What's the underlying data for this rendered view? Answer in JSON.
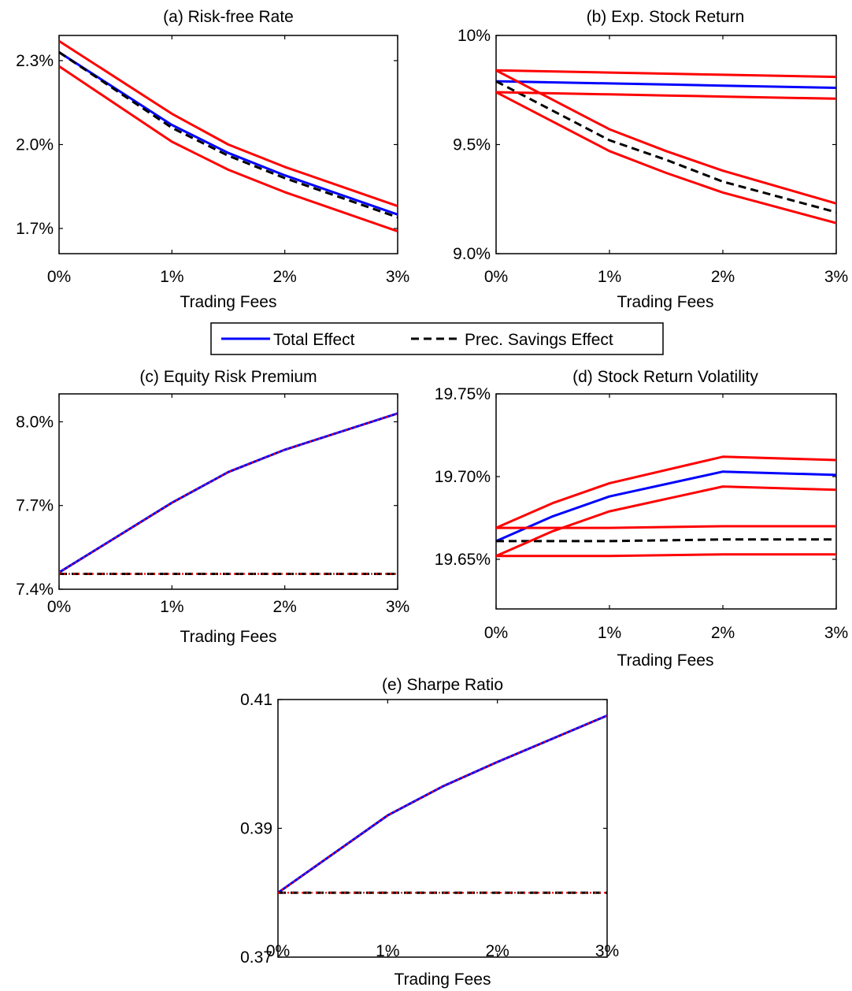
{
  "chart_data": [
    {
      "type": "line",
      "title": "(a) Risk-free Rate",
      "xlabel": "Trading Fees",
      "ylabel": "",
      "x": [
        0,
        1,
        1.5,
        2,
        3
      ],
      "x_tick_labels": [
        "0%",
        "1%",
        "2%",
        "3%"
      ],
      "y_tick_labels": [
        "1.7%",
        "2.0%",
        "2.3%"
      ],
      "ylim": [
        1.61,
        2.39
      ],
      "series": [
        {
          "name": "Total Effect",
          "color": "#0000ff",
          "dash": "solid",
          "values": [
            2.33,
            2.07,
            1.97,
            1.89,
            1.75
          ]
        },
        {
          "name": "Prec. Savings Effect",
          "color": "#000000",
          "dash": "dashed",
          "values": [
            2.33,
            2.06,
            1.96,
            1.88,
            1.74
          ]
        },
        {
          "name": "",
          "color": "#ff0000",
          "dash": "solid",
          "values": [
            2.37,
            2.11,
            2.0,
            1.92,
            1.78
          ]
        },
        {
          "name": "",
          "color": "#ff0000",
          "dash": "solid",
          "values": [
            2.28,
            2.01,
            1.91,
            1.83,
            1.69
          ]
        }
      ]
    },
    {
      "type": "line",
      "title": "(b) Exp. Stock Return",
      "xlabel": "Trading Fees",
      "ylabel": "",
      "x": [
        0,
        1,
        1.5,
        2,
        3
      ],
      "x_tick_labels": [
        "0%",
        "1%",
        "2%",
        "3%"
      ],
      "y_tick_labels": [
        "9.0%",
        "9.5%",
        "10%"
      ],
      "ylim": [
        9.0,
        10.0
      ],
      "series": [
        {
          "name": "Total Effect",
          "color": "#0000ff",
          "dash": "solid",
          "values": [
            9.79,
            9.78,
            9.775,
            9.77,
            9.76
          ]
        },
        {
          "name": "Prec. Savings Effect",
          "color": "#000000",
          "dash": "dashed",
          "values": [
            9.79,
            9.52,
            9.43,
            9.33,
            9.19
          ]
        },
        {
          "name": "",
          "color": "#ff0000",
          "dash": "solid",
          "values": [
            9.84,
            9.83,
            9.825,
            9.82,
            9.81
          ]
        },
        {
          "name": "",
          "color": "#ff0000",
          "dash": "solid",
          "values": [
            9.74,
            9.73,
            9.725,
            9.72,
            9.71
          ]
        },
        {
          "name": "",
          "color": "#ff0000",
          "dash": "solid",
          "values": [
            9.84,
            9.57,
            9.47,
            9.38,
            9.23
          ]
        },
        {
          "name": "",
          "color": "#ff0000",
          "dash": "solid",
          "values": [
            9.74,
            9.47,
            9.37,
            9.28,
            9.14
          ]
        }
      ]
    },
    {
      "type": "line",
      "title": "(c) Equity Risk Premium",
      "xlabel": "Trading Fees",
      "ylabel": "",
      "x": [
        0,
        1,
        1.5,
        2,
        3
      ],
      "x_tick_labels": [
        "0%",
        "1%",
        "2%",
        "3%"
      ],
      "y_tick_labels": [
        "7.4%",
        "7.7%",
        "8.0%"
      ],
      "ylim": [
        7.4,
        8.1
      ],
      "series": [
        {
          "name": "Total Effect",
          "color": "#0000ff",
          "dash": "solid",
          "values": [
            7.46,
            7.71,
            7.82,
            7.9,
            8.03
          ]
        },
        {
          "name": "",
          "color": "#ff0000",
          "dash": "dotted",
          "values": [
            7.46,
            7.71,
            7.82,
            7.9,
            8.03
          ]
        },
        {
          "name": "Prec. Savings Effect",
          "color": "#000000",
          "dash": "dashed",
          "values": [
            7.455,
            7.455,
            7.455,
            7.455,
            7.455
          ]
        },
        {
          "name": "",
          "color": "#ff0000",
          "dash": "dotted",
          "values": [
            7.455,
            7.455,
            7.455,
            7.455,
            7.455
          ]
        }
      ]
    },
    {
      "type": "line",
      "title": "(d) Stock Return Volatility",
      "xlabel": "Trading Fees",
      "ylabel": "",
      "x": [
        0,
        0.5,
        1,
        2,
        3
      ],
      "x_tick_labels": [
        "0%",
        "1%",
        "2%",
        "3%"
      ],
      "y_tick_labels": [
        "19.65%",
        "19.70%",
        "19.75%"
      ],
      "ylim": [
        19.62,
        19.75
      ],
      "series": [
        {
          "name": "Total Effect",
          "color": "#0000ff",
          "dash": "solid",
          "values": [
            19.661,
            19.676,
            19.688,
            19.703,
            19.701
          ]
        },
        {
          "name": "Prec. Savings Effect",
          "color": "#000000",
          "dash": "dashed",
          "values": [
            19.661,
            19.661,
            19.661,
            19.662,
            19.662
          ]
        },
        {
          "name": "",
          "color": "#ff0000",
          "dash": "solid",
          "values": [
            19.669,
            19.684,
            19.696,
            19.712,
            19.71
          ]
        },
        {
          "name": "",
          "color": "#ff0000",
          "dash": "solid",
          "values": [
            19.652,
            19.667,
            19.679,
            19.694,
            19.692
          ]
        },
        {
          "name": "",
          "color": "#ff0000",
          "dash": "solid",
          "values": [
            19.669,
            19.669,
            19.669,
            19.67,
            19.67
          ]
        },
        {
          "name": "",
          "color": "#ff0000",
          "dash": "solid",
          "values": [
            19.652,
            19.652,
            19.652,
            19.653,
            19.653
          ]
        }
      ]
    },
    {
      "type": "line",
      "title": "(e) Sharpe Ratio",
      "xlabel": "Trading Fees",
      "ylabel": "",
      "x": [
        0,
        1,
        1.5,
        2,
        3
      ],
      "x_tick_labels": [
        "0%",
        "1%",
        "2%",
        "3%"
      ],
      "y_tick_labels": [
        "0.37",
        "0.39",
        "0.41"
      ],
      "ylim": [
        0.37,
        0.41
      ],
      "series": [
        {
          "name": "Total Effect",
          "color": "#0000ff",
          "dash": "solid",
          "values": [
            0.38,
            0.392,
            0.3965,
            0.4003,
            0.4075
          ]
        },
        {
          "name": "",
          "color": "#ff0000",
          "dash": "dotted",
          "values": [
            0.38,
            0.392,
            0.3965,
            0.4003,
            0.4075
          ]
        },
        {
          "name": "Prec. Savings Effect",
          "color": "#000000",
          "dash": "dashed",
          "values": [
            0.38,
            0.38,
            0.38,
            0.38,
            0.38
          ]
        },
        {
          "name": "",
          "color": "#ff0000",
          "dash": "dotted",
          "values": [
            0.38,
            0.38,
            0.38,
            0.38,
            0.38
          ]
        }
      ]
    }
  ],
  "legend": {
    "placement": "center, between rows",
    "items": [
      {
        "label": "Total Effect",
        "color": "#0000ff",
        "dash": "solid"
      },
      {
        "label": "Prec. Savings Effect",
        "color": "#000000",
        "dash": "dashed"
      }
    ]
  }
}
